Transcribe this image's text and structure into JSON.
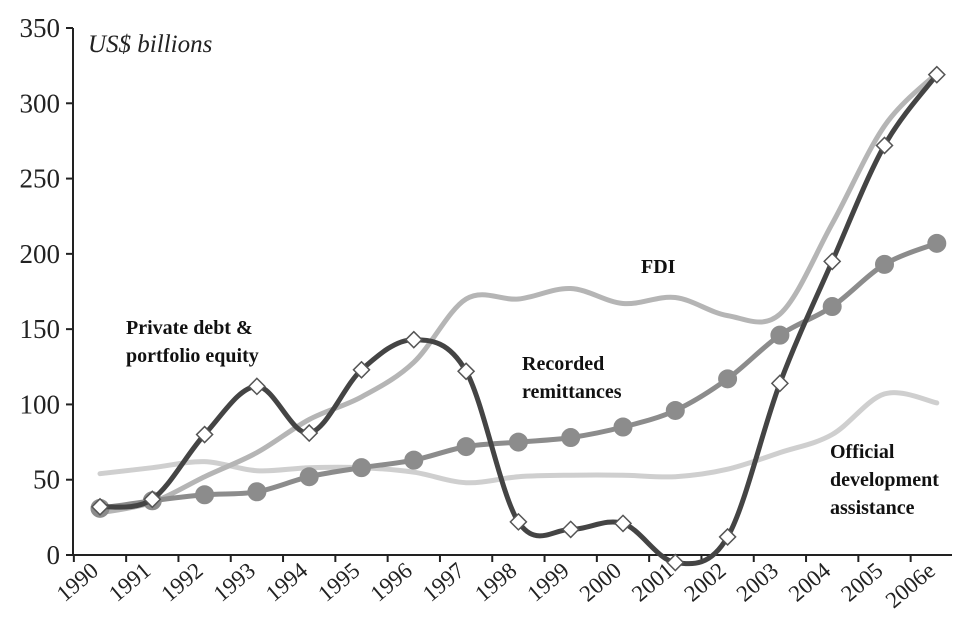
{
  "chart_data": {
    "type": "line",
    "title": "",
    "unit_label": "US$ billions",
    "xlabel": "",
    "ylabel": "",
    "categories": [
      "1990",
      "1991",
      "1992",
      "1993",
      "1994",
      "1995",
      "1996",
      "1997",
      "1998",
      "1999",
      "2000",
      "2001",
      "2002",
      "2003",
      "2004",
      "2005",
      "2006e"
    ],
    "ylim": [
      0,
      350
    ],
    "yticks": [
      "0",
      "50",
      "100",
      "150",
      "200",
      "250",
      "300",
      "350"
    ],
    "grid": false,
    "legend": "none (series labelled directly on chart)",
    "series": [
      {
        "name": "FDI",
        "label_lines": [
          "FDI"
        ],
        "color": "#b5b5b5",
        "marker": "none",
        "values": [
          28,
          35,
          52,
          68,
          90,
          105,
          128,
          170,
          170,
          177,
          167,
          171,
          159,
          160,
          220,
          285,
          320
        ]
      },
      {
        "name": "Private debt & portfolio equity",
        "label_lines": [
          "Private debt &",
          "portfolio equity"
        ],
        "color": "#444444",
        "marker": "diamond",
        "values": [
          32,
          37,
          80,
          112,
          81,
          123,
          143,
          122,
          22,
          17,
          21,
          -5,
          12,
          114,
          195,
          272,
          319
        ]
      },
      {
        "name": "Recorded remittances",
        "label_lines": [
          "Recorded",
          "remittances"
        ],
        "color": "#8c8c8c",
        "marker": "circle",
        "values": [
          31,
          36,
          40,
          42,
          52,
          58,
          63,
          72,
          75,
          78,
          85,
          96,
          117,
          146,
          165,
          193,
          207
        ]
      },
      {
        "name": "Official development assistance",
        "label_lines": [
          "Official",
          "development",
          "assistance"
        ],
        "color": "#cfcfcf",
        "marker": "none",
        "values": [
          54,
          58,
          62,
          56,
          58,
          58,
          55,
          48,
          52,
          53,
          53,
          52,
          57,
          68,
          80,
          107,
          101
        ]
      }
    ]
  }
}
